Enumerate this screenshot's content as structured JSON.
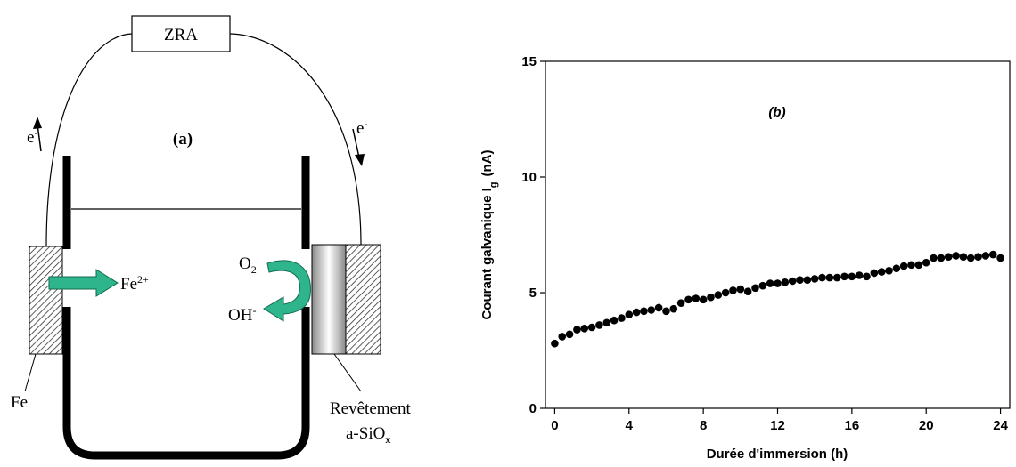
{
  "diagram": {
    "zra": "ZRA",
    "electron_left": {
      "text": "e",
      "sup": "-"
    },
    "electron_right": {
      "text": "e",
      "sup": "-"
    },
    "panel_label": "(a)",
    "iron_ion": {
      "text": "Fe",
      "sup": "2+"
    },
    "oxygen": {
      "text": "O",
      "sub": "2"
    },
    "hydroxide": {
      "text": "OH",
      "sup": "-"
    },
    "iron": "Fe",
    "coating": {
      "line1": "Revêtement",
      "line2": "a-SiO",
      "sub": "x"
    }
  },
  "chart_data": {
    "type": "scatter",
    "annotation": "(b)",
    "x_label": "Durée d'immersion (h)",
    "y_label": "Courant galvanique I",
    "y_label_sub": "g",
    "y_label_unit": "(nA)",
    "color": "#000000",
    "xlim": [
      -0.5,
      24.5
    ],
    "xticks": [
      0,
      4,
      8,
      12,
      16,
      20,
      24
    ],
    "ylim": [
      0,
      15
    ],
    "yticks": [
      0,
      5,
      10,
      15
    ],
    "x": [
      0,
      0.4,
      0.8,
      1.2,
      1.6,
      2.0,
      2.4,
      2.8,
      3.2,
      3.6,
      4.0,
      4.4,
      4.8,
      5.2,
      5.6,
      6.0,
      6.4,
      6.8,
      7.2,
      7.6,
      8.0,
      8.4,
      8.8,
      9.2,
      9.6,
      10.0,
      10.4,
      10.8,
      11.2,
      11.6,
      12.0,
      12.4,
      12.8,
      13.2,
      13.6,
      14.0,
      14.4,
      14.8,
      15.2,
      15.6,
      16.0,
      16.4,
      16.8,
      17.2,
      17.6,
      18.0,
      18.4,
      18.8,
      19.2,
      19.6,
      20.0,
      20.4,
      20.8,
      21.2,
      21.6,
      22.0,
      22.4,
      22.8,
      23.2,
      23.6,
      24.0
    ],
    "values": [
      2.8,
      3.1,
      3.2,
      3.4,
      3.45,
      3.5,
      3.6,
      3.7,
      3.8,
      3.9,
      4.05,
      4.15,
      4.2,
      4.25,
      4.35,
      4.2,
      4.3,
      4.55,
      4.7,
      4.75,
      4.7,
      4.8,
      4.9,
      5.0,
      5.1,
      5.15,
      5.05,
      5.2,
      5.3,
      5.4,
      5.4,
      5.45,
      5.5,
      5.55,
      5.55,
      5.6,
      5.65,
      5.65,
      5.65,
      5.7,
      5.7,
      5.75,
      5.7,
      5.85,
      5.9,
      5.95,
      6.05,
      6.15,
      6.2,
      6.2,
      6.3,
      6.5,
      6.5,
      6.55,
      6.6,
      6.55,
      6.5,
      6.55,
      6.6,
      6.65,
      6.5
    ]
  }
}
